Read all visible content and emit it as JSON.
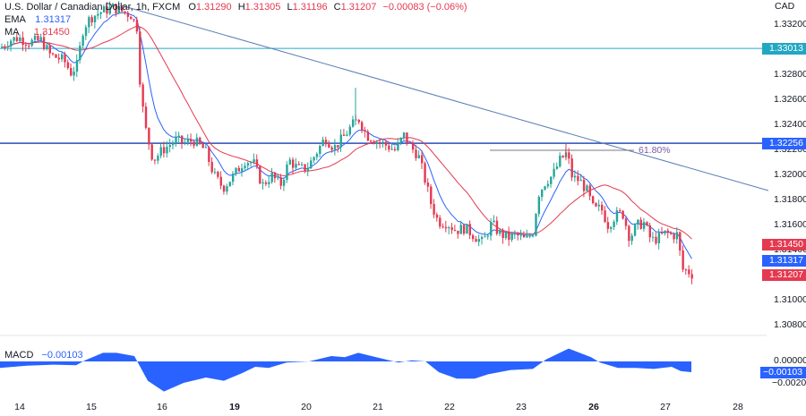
{
  "header": {
    "symbol_title": "U.S. Dollar / Canadian Dollar, 1h, FXCM",
    "open_label": "O",
    "open": "1.31290",
    "high_label": "H",
    "high": "1.31305",
    "low_label": "L",
    "low": "1.31196",
    "close_label": "C",
    "close": "1.31207",
    "change": "−0.00083 (−0.06%)",
    "ema_label": "EMA",
    "ema_value": "1.31317",
    "ma_label": "MA",
    "ma_value": "1.31450"
  },
  "price_axis": {
    "currency": "CAD",
    "ticks": [
      "1.33200",
      "1.32800",
      "1.32600",
      "1.32400",
      "1.32200",
      "1.32000",
      "1.31800",
      "1.31600",
      "1.31400",
      "1.31000",
      "1.30800"
    ]
  },
  "price_tags": [
    {
      "value": "1.33013",
      "color": "#22a7c2"
    },
    {
      "value": "1.32256",
      "color": "#2962ff"
    },
    {
      "value": "1.31450",
      "color": "#e53950"
    },
    {
      "value": "1.31317",
      "color": "#2962ff"
    },
    {
      "value": "1.31207",
      "color": "#e53950"
    }
  ],
  "fib_label": "61.80%",
  "macd": {
    "label": "MACD",
    "value": "−0.00103",
    "ticks": [
      "0.00000",
      "−0.00103",
      "−0.00200"
    ]
  },
  "time_axis": {
    "labels": [
      {
        "text": "14",
        "bold": false
      },
      {
        "text": "15",
        "bold": false
      },
      {
        "text": "16",
        "bold": false
      },
      {
        "text": "19",
        "bold": true
      },
      {
        "text": "20",
        "bold": false
      },
      {
        "text": "21",
        "bold": false
      },
      {
        "text": "22",
        "bold": false
      },
      {
        "text": "23",
        "bold": false
      },
      {
        "text": "26",
        "bold": true
      },
      {
        "text": "27",
        "bold": false
      },
      {
        "text": "28",
        "bold": false
      }
    ]
  },
  "colors": {
    "up": "#26a69a",
    "down": "#e53950",
    "ema": "#2962ff",
    "ma": "#e53950",
    "trendline": "#5b7db8",
    "resistance_top": "#22a7c2",
    "resistance_mid": "#2a4fb5",
    "macd_fill": "#2962ff"
  },
  "chart_data": {
    "type": "candlestick",
    "title": "U.S. Dollar / Canadian Dollar, 1h, FXCM",
    "ylabel": "CAD",
    "ylim": [
      1.3075,
      1.334
    ],
    "x_ticks": [
      "14",
      "15",
      "16",
      "19",
      "20",
      "21",
      "22",
      "23",
      "26",
      "27",
      "28"
    ],
    "last_ohlc": {
      "open": 1.3129,
      "high": 1.31305,
      "low": 1.31196,
      "close": 1.31207,
      "change": -0.00083,
      "change_pct": -0.06
    },
    "indicators": {
      "EMA": 1.31317,
      "MA": 1.3145,
      "MACD": -0.00103
    },
    "horizontal_levels": [
      1.33013,
      1.32256
    ],
    "fibonacci": {
      "level": "61.80%",
      "price": 1.322
    },
    "trendline": {
      "from": {
        "x": "15",
        "price": 1.3335
      },
      "to": {
        "x": "27+",
        "price": 1.3197
      }
    },
    "close_path_approx": [
      {
        "x": "14",
        "price": 1.3302
      },
      {
        "x": "14.5",
        "price": 1.329
      },
      {
        "x": "15",
        "price": 1.331
      },
      {
        "x": "15.5",
        "price": 1.3332
      },
      {
        "x": "16",
        "price": 1.323
      },
      {
        "x": "16.5",
        "price": 1.3225
      },
      {
        "x": "19",
        "price": 1.32
      },
      {
        "x": "19.5",
        "price": 1.3215
      },
      {
        "x": "20",
        "price": 1.321
      },
      {
        "x": "20.5",
        "price": 1.324
      },
      {
        "x": "21",
        "price": 1.3225
      },
      {
        "x": "21.5",
        "price": 1.321
      },
      {
        "x": "22",
        "price": 1.316
      },
      {
        "x": "22.5",
        "price": 1.315
      },
      {
        "x": "23",
        "price": 1.3155
      },
      {
        "x": "23.5",
        "price": 1.3215
      },
      {
        "x": "26",
        "price": 1.3175
      },
      {
        "x": "26.5",
        "price": 1.316
      },
      {
        "x": "27",
        "price": 1.3155
      },
      {
        "x": "27.3",
        "price": 1.3121
      }
    ],
    "macd_series_approx": [
      {
        "x": "14",
        "value": -0.0006
      },
      {
        "x": "15",
        "value": 0.0003
      },
      {
        "x": "15.5",
        "value": 0.0008
      },
      {
        "x": "16",
        "value": -0.0028
      },
      {
        "x": "19",
        "value": -0.0008
      },
      {
        "x": "20",
        "value": 0.0002
      },
      {
        "x": "20.7",
        "value": 0.0008
      },
      {
        "x": "21.3",
        "value": -0.0001
      },
      {
        "x": "22",
        "value": -0.0017
      },
      {
        "x": "23",
        "value": -0.0007
      },
      {
        "x": "25.6",
        "value": 0.0012
      },
      {
        "x": "26",
        "value": -0.0002
      },
      {
        "x": "27",
        "value": -0.0006
      },
      {
        "x": "27.3",
        "value": -0.001
      }
    ]
  }
}
